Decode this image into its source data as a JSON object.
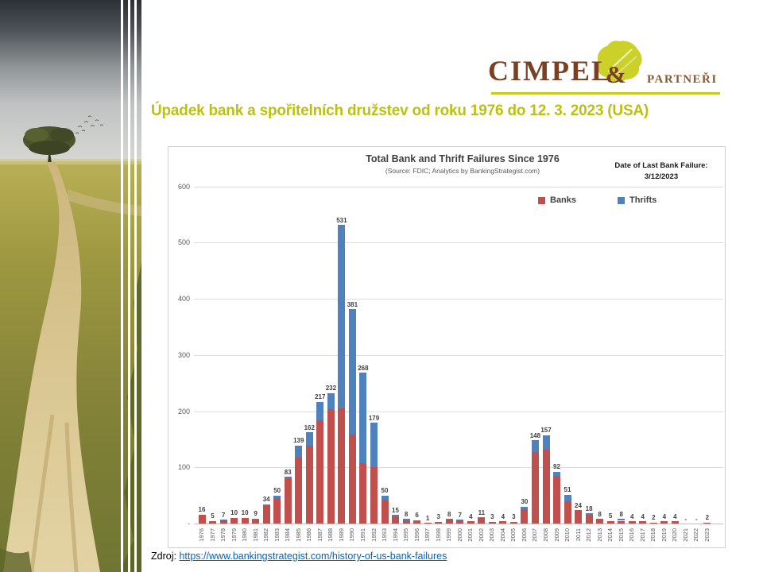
{
  "slide": {
    "title": "Úpadek bank a spořitelních družstev od roku 1976 do 12. 3. 2023 (USA)",
    "title_color": "#bcc20c",
    "source_label": "Zdroj:",
    "source_link": "https://www.bankingstrategist.com/history-of-us-bank-failures"
  },
  "logo": {
    "name": "CIMPEL",
    "amp": "&",
    "suffix": "PARTNEŘI",
    "colors": {
      "name": "#7a4023",
      "suffix": "#8a5a2b",
      "leaf": "#cbd128",
      "underline": "#c5cb1f"
    }
  },
  "chart_data": {
    "type": "bar",
    "stacked": true,
    "title": "Total Bank and Thrift Failures Since 1976",
    "subtitle": "(Source: FDIC; Analytics by BankingStrategist.com)",
    "annotation": {
      "label": "Date of Last Bank Failure:",
      "value": "3/12/2023"
    },
    "legend_position": "top-right",
    "grid": true,
    "ylim": [
      0,
      600
    ],
    "yticks": [
      {
        "value": 600,
        "label": "600"
      },
      {
        "value": 500,
        "label": "500"
      },
      {
        "value": 400,
        "label": "400"
      },
      {
        "value": 300,
        "label": "300"
      },
      {
        "value": 200,
        "label": "200"
      },
      {
        "value": 100,
        "label": "100"
      },
      {
        "value": 0,
        "label": "-"
      }
    ],
    "categories": [
      "1976",
      "1977",
      "1978",
      "1979",
      "1980",
      "1981",
      "1982",
      "1983",
      "1984",
      "1985",
      "1986",
      "1987",
      "1988",
      "1989",
      "1990",
      "1991",
      "1992",
      "1993",
      "1994",
      "1995",
      "1996",
      "1997",
      "1998",
      "1999",
      "2000",
      "2001",
      "2002",
      "2003",
      "2004",
      "2005",
      "2006",
      "2007",
      "2008",
      "2009",
      "2010",
      "2011",
      "2012",
      "2013",
      "2014",
      "2015",
      "2016",
      "2017",
      "2018",
      "2019",
      "2020",
      "2021",
      "2022",
      "2023"
    ],
    "series": [
      {
        "name": "Banks",
        "color": "#C0504D",
        "values": [
          16,
          5,
          6,
          10,
          10,
          7,
          32,
          45,
          80,
          118,
          138,
          184,
          204,
          205,
          158,
          108,
          100,
          42,
          13,
          6,
          5,
          1,
          3,
          7,
          6,
          4,
          10,
          3,
          4,
          1,
          26,
          127,
          132,
          85,
          40,
          24,
          16,
          8,
          5,
          5,
          4,
          4,
          2,
          4,
          4,
          0,
          0,
          2
        ]
      },
      {
        "name": "Thrifts",
        "color": "#4F81BD",
        "values": [
          0,
          0,
          1,
          0,
          0,
          2,
          2,
          5,
          3,
          21,
          24,
          33,
          28,
          326,
          223,
          160,
          79,
          8,
          2,
          2,
          1,
          0,
          0,
          1,
          1,
          0,
          1,
          0,
          0,
          2,
          4,
          21,
          25,
          7,
          11,
          0,
          2,
          0,
          0,
          3,
          0,
          0,
          0,
          0,
          0,
          0,
          0,
          0
        ]
      }
    ],
    "total_labels": [
      "16",
      "5",
      "7",
      "10",
      "10",
      "9",
      "34",
      "50",
      "83",
      "139",
      "162",
      "217",
      "232",
      "531",
      "381",
      "268",
      "179",
      "50",
      "15",
      "8",
      "6",
      "1",
      "3",
      "8",
      "7",
      "4",
      "11",
      "3",
      "4",
      "3",
      "30",
      "148",
      "157",
      "92",
      "51",
      "24",
      "18",
      "8",
      "5",
      "8",
      "4",
      "4",
      "2",
      "4",
      "4",
      "-",
      "-",
      "2"
    ]
  }
}
